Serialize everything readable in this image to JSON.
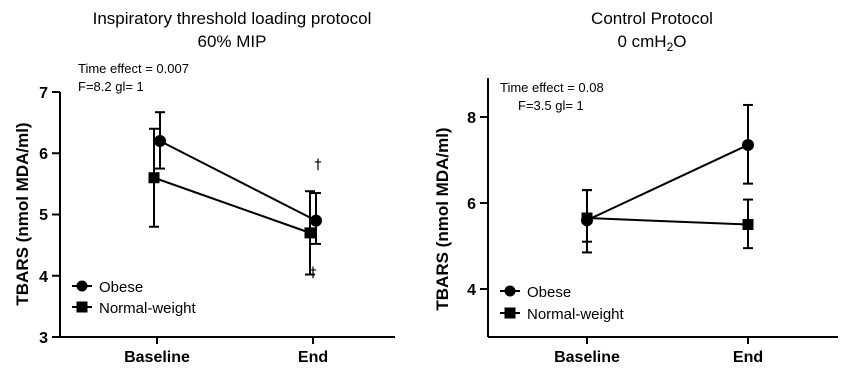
{
  "chart_data": [
    {
      "type": "line",
      "title": [
        "Inspiratory threshold loading protocol",
        "60% MIP"
      ],
      "annotation": [
        "Time effect = 0.007",
        "F=8.2  gl= 1"
      ],
      "ylabel": "TBARS (nmol MDA/ml)",
      "ylim": [
        3,
        7
      ],
      "yticks": [
        "3",
        "4",
        "5",
        "6",
        "7"
      ],
      "categories": [
        "Baseline",
        "End"
      ],
      "legend_position": "bottom-left",
      "series": [
        {
          "name": "Obese",
          "marker": "circle",
          "values": [
            6.2,
            4.9
          ],
          "err_low": [
            5.75,
            4.52
          ],
          "err_high": [
            6.67,
            5.35
          ]
        },
        {
          "name": "Normal-weight",
          "marker": "square",
          "values": [
            5.6,
            4.7
          ],
          "err_low": [
            4.8,
            4.02
          ],
          "err_high": [
            6.4,
            5.38
          ]
        }
      ],
      "significance": {
        "symbol": "†",
        "category": "End",
        "values": [
          5.8,
          4.1
        ]
      }
    },
    {
      "type": "line",
      "title": [
        "Control Protocol",
        "0 cmH2O"
      ],
      "annotation": [
        "Time effect = 0.08",
        "F=3.5  gl= 1"
      ],
      "ylabel": "TBARS (nmol MDA/ml)",
      "ylim": [
        3.3,
        8.9
      ],
      "yticks": [
        "4",
        "6",
        "8"
      ],
      "categories": [
        "Baseline",
        "End"
      ],
      "legend_position": "bottom-left",
      "series": [
        {
          "name": "Obese",
          "marker": "circle",
          "values": [
            5.6,
            7.35
          ],
          "err_low": [
            4.85,
            6.45
          ],
          "err_high": [
            6.3,
            8.28
          ]
        },
        {
          "name": "Normal-weight",
          "marker": "square",
          "values": [
            5.65,
            5.5
          ],
          "err_low": [
            5.1,
            4.95
          ],
          "err_high": [
            6.3,
            6.08
          ]
        }
      ]
    }
  ]
}
